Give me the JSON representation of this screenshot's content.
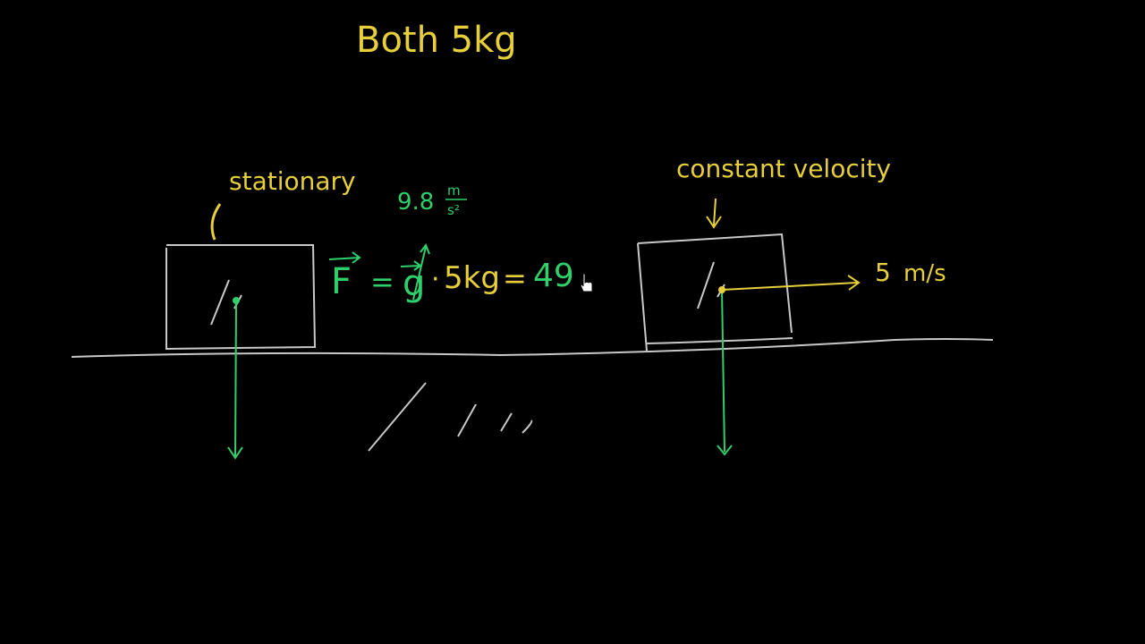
{
  "colors": {
    "background": "#000000",
    "yellow": "#e6cf3a",
    "green": "#2fcf6a",
    "white": "#c8c8c8"
  },
  "title": "Both 5kg",
  "left_block": {
    "label": "stationary"
  },
  "equation": {
    "F": "F",
    "equals1": "=",
    "g": "g",
    "dot": "·",
    "mass": "5kg",
    "equals2": "=",
    "result": "49",
    "g_value": "9.8",
    "g_units_num": "m",
    "g_units_den": "s²"
  },
  "right_block": {
    "label": "constant velocity",
    "speed_value": "5",
    "speed_units": "m/s"
  },
  "icons": {
    "cursor": "hand-cursor-icon"
  }
}
